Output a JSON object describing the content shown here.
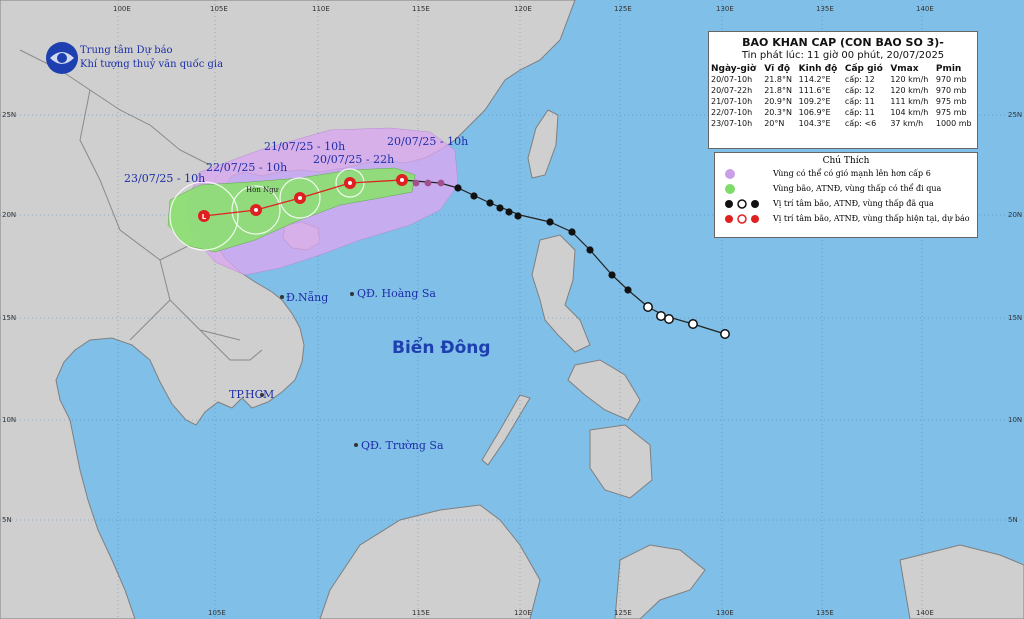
{
  "org": {
    "line1": "Trung tâm Dự báo",
    "line2": "Khí tượng thuỷ văn quốc gia"
  },
  "bulletin": {
    "title": "BAO KHAN CAP (CON BAO SO 3)-",
    "issued": "Tin phát lúc: 11 giờ 00 phút, 20/07/2025",
    "columns": [
      "Ngày-giờ",
      "Vĩ độ",
      "Kinh độ",
      "Cấp gió",
      "Vmax",
      "Pmin"
    ],
    "rows": [
      [
        "20/07-10h",
        "21.8°N",
        "114.2°E",
        "cấp: 12",
        "120 km/h",
        "970 mb"
      ],
      [
        "20/07-22h",
        "21.8°N",
        "111.6°E",
        "cấp: 12",
        "120 km/h",
        "970 mb"
      ],
      [
        "21/07-10h",
        "20.9°N",
        "109.2°E",
        "cấp: 11",
        "111 km/h",
        "975 mb"
      ],
      [
        "22/07-10h",
        "20.3°N",
        "106.9°E",
        "cấp: 11",
        "104 km/h",
        "975 mb"
      ],
      [
        "23/07-10h",
        "20°N",
        "104.3°E",
        "cấp: <6",
        "37 km/h",
        "1000 mb"
      ]
    ]
  },
  "legend": {
    "title": "Chú Thích",
    "items": [
      {
        "text": "Vùng có thể có gió mạnh lên hơn cấp 6",
        "color": "#c9a0e6"
      },
      {
        "text": "Vùng bão, ATNĐ, vùng thấp có thể đi qua",
        "color": "#7fdb6a"
      },
      {
        "text": "Vị trí tâm bão, ATNĐ, vùng thấp đã qua",
        "color": "#000000"
      },
      {
        "text": "Vị trí tâm bão, ATNĐ, vùng thấp hiện tại, dự báo",
        "color": "#e02020"
      }
    ]
  },
  "labels": {
    "sea": "Biển Đông",
    "danang": "Đ.Nẵng",
    "hoangsa": "QĐ. Hoàng Sa",
    "hcm": "TP.HCM",
    "truongsa": "QĐ. Trường Sa",
    "f1": "20/07/25 - 10h",
    "f2": "20/07/25 - 22h",
    "f3": "21/07/25 - 10h",
    "f4": "22/07/25 - 10h",
    "f5": "23/07/25 - 10h",
    "gulf": "Hòn Ngư"
  },
  "axis": {
    "top": [
      "100E",
      "105E",
      "110E",
      "115E",
      "120E",
      "125E",
      "130E",
      "135E",
      "140E"
    ],
    "bottom": [
      "105E",
      "115E",
      "120E",
      "125E",
      "130E",
      "135E",
      "140E"
    ],
    "left": [
      "25N",
      "20N",
      "15N",
      "10N",
      "5N"
    ],
    "right": [
      "25N",
      "20N",
      "15N",
      "10N",
      "5N"
    ]
  }
}
